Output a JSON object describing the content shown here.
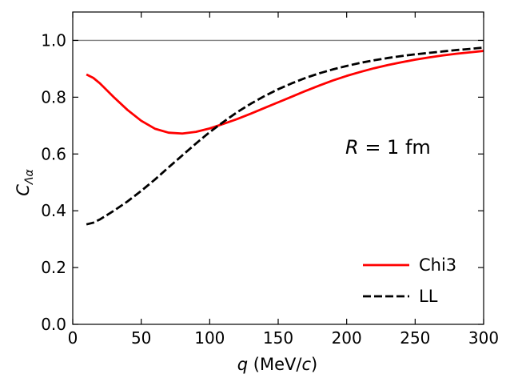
{
  "chart_data": {
    "type": "line",
    "title": "",
    "xlabel": {
      "var": "q",
      "unit_pre": " (MeV/",
      "unit_var": "c",
      "unit_post": ")"
    },
    "ylabel": {
      "main": "C",
      "sub": "Λα"
    },
    "xlim": [
      0,
      300
    ],
    "ylim": [
      0.0,
      1.1
    ],
    "xticks": [
      0,
      50,
      100,
      150,
      200,
      250,
      300
    ],
    "yticks": [
      0.0,
      0.2,
      0.4,
      0.6,
      0.8,
      1.0
    ],
    "xtick_labels": [
      "0",
      "50",
      "100",
      "150",
      "200",
      "250",
      "300"
    ],
    "ytick_labels": [
      "0.0",
      "0.2",
      "0.4",
      "0.6",
      "0.8",
      "1.0"
    ],
    "reference_line": {
      "y": 1.0,
      "color": "#808080"
    },
    "annotation": {
      "var": "R",
      "text": " = 1 fm"
    },
    "legend_position": "lower-right",
    "series": [
      {
        "name": "Chi3",
        "color": "#ff0000",
        "style": "solid",
        "x": [
          10,
          15,
          20,
          30,
          40,
          50,
          60,
          70,
          80,
          90,
          100,
          110,
          120,
          130,
          140,
          150,
          160,
          170,
          180,
          190,
          200,
          210,
          220,
          230,
          240,
          250,
          260,
          270,
          280,
          290,
          300
        ],
        "y": [
          0.88,
          0.868,
          0.848,
          0.8,
          0.755,
          0.717,
          0.689,
          0.675,
          0.672,
          0.678,
          0.69,
          0.706,
          0.723,
          0.742,
          0.762,
          0.782,
          0.802,
          0.822,
          0.841,
          0.859,
          0.875,
          0.889,
          0.902,
          0.913,
          0.923,
          0.932,
          0.94,
          0.947,
          0.953,
          0.958,
          0.963
        ]
      },
      {
        "name": "LL",
        "color": "#000000",
        "style": "dashed",
        "x": [
          10,
          15,
          20,
          30,
          40,
          50,
          60,
          70,
          80,
          90,
          100,
          110,
          120,
          130,
          140,
          150,
          160,
          170,
          180,
          190,
          200,
          210,
          220,
          230,
          240,
          250,
          260,
          270,
          280,
          290,
          300
        ],
        "y": [
          0.352,
          0.358,
          0.37,
          0.4,
          0.433,
          0.47,
          0.51,
          0.553,
          0.595,
          0.637,
          0.677,
          0.713,
          0.747,
          0.777,
          0.804,
          0.828,
          0.849,
          0.868,
          0.884,
          0.898,
          0.91,
          0.921,
          0.93,
          0.938,
          0.945,
          0.951,
          0.956,
          0.961,
          0.966,
          0.97,
          0.975
        ]
      }
    ]
  }
}
